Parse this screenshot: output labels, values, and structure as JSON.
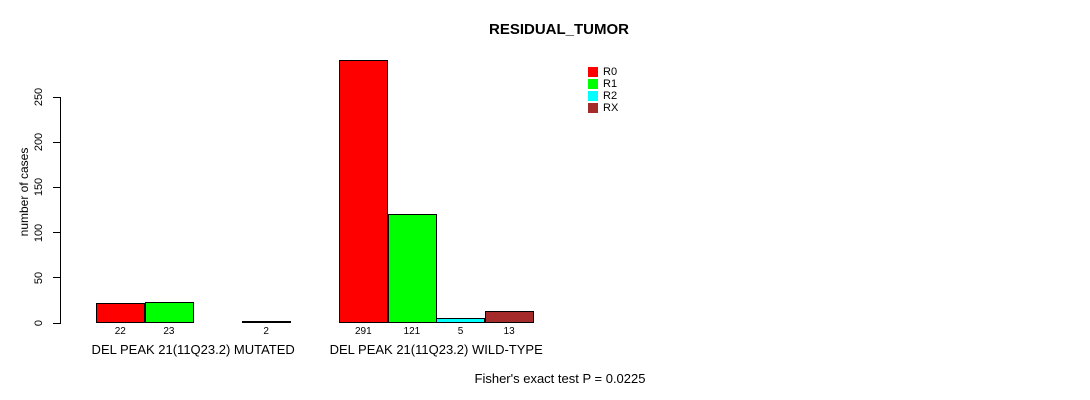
{
  "title": "RESIDUAL_TUMOR",
  "footer": "Fisher's exact test P = 0.0225",
  "chart_data": {
    "type": "bar",
    "title": "RESIDUAL_TUMOR",
    "xlabel": "",
    "ylabel": "number of cases",
    "ylim": [
      0,
      291
    ],
    "yticks": [
      0,
      50,
      100,
      150,
      200,
      250
    ],
    "grid": false,
    "legend_position": "top-right",
    "categories": [
      "DEL PEAK 21(11Q23.2) MUTATED",
      "DEL PEAK 21(11Q23.2) WILD-TYPE"
    ],
    "series": [
      {
        "name": "R0",
        "color": "#ff0000",
        "values": [
          22,
          291
        ]
      },
      {
        "name": "R1",
        "color": "#00ff00",
        "values": [
          23,
          121
        ]
      },
      {
        "name": "R2",
        "color": "#00ffff",
        "values": [
          0,
          5
        ]
      },
      {
        "name": "RX",
        "color": "#a52a2a",
        "values": [
          2,
          13
        ]
      }
    ],
    "bar_value_labels": [
      [
        "22",
        "23",
        "",
        "2"
      ],
      [
        "291",
        "121",
        "5",
        "13"
      ]
    ],
    "annotation": "Fisher's exact test P = 0.0225"
  }
}
